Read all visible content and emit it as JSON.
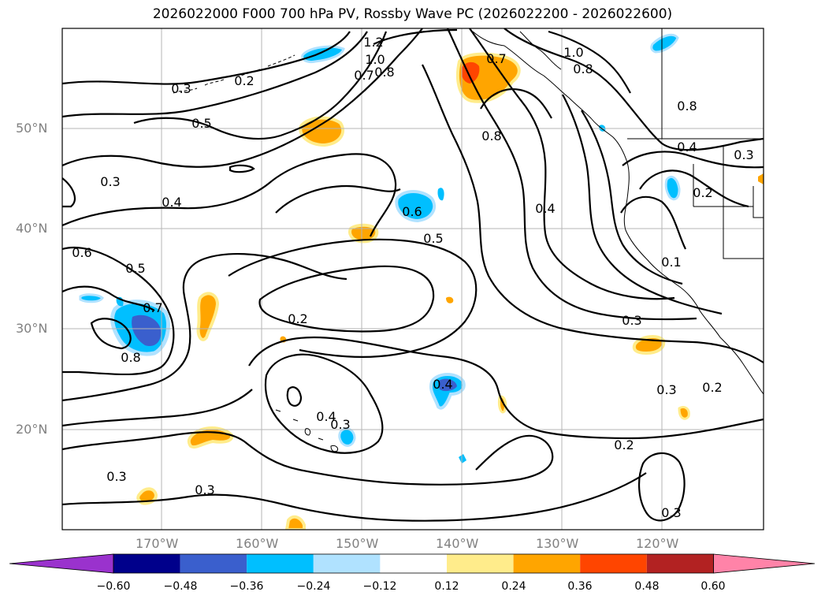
{
  "title": "2026022000 F000 700 hPa PV, Rossby Wave PC (2026022200 - 2026022600)",
  "lat_labels": [
    "50°N",
    "40°N",
    "30°N",
    "20°N"
  ],
  "lon_labels": [
    "170°W",
    "160°W",
    "150°W",
    "140°W",
    "130°W",
    "120°W"
  ],
  "contour_labels": [
    "1.2",
    "1.0",
    "1.0",
    "0.7",
    "0.8",
    "0.7",
    "0.8",
    "0.3",
    "0.2",
    "0.5",
    "0.8",
    "0.8",
    "0.4",
    "0.3",
    "0.3",
    "0.4",
    "0.6",
    "0.4",
    "0.2",
    "0.5",
    "0.6",
    "0.5",
    "0.1",
    "0.7",
    "0.2",
    "0.3",
    "0.8",
    "0.4",
    "0.3",
    "0.2",
    "0.4",
    "0.2",
    "0.3",
    "0.3",
    "0.3",
    "0.3"
  ],
  "colorbar": {
    "labels": [
      "−0.60",
      "−0.48",
      "−0.36",
      "−0.24",
      "−0.12",
      "0.12",
      "0.24",
      "0.36",
      "0.48",
      "0.60"
    ],
    "colors": [
      "#9a32cd",
      "#00008b",
      "#3a5fcd",
      "#00bfff",
      "#b0e2ff",
      "#ffffff",
      "#ffec8b",
      "#ffa500",
      "#ff4500",
      "#b22222",
      "#ff83a8"
    ]
  }
}
